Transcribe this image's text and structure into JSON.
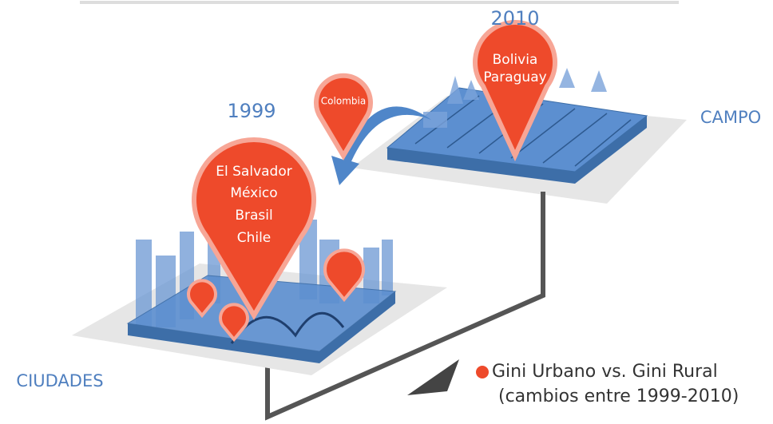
{
  "labels": {
    "year_start": "1999",
    "year_end": "2010",
    "rural": "CAMPO",
    "urban": "CIUDADES"
  },
  "pins": {
    "urban_main": [
      "El Salvador",
      "México",
      "Brasil",
      "Chile"
    ],
    "rural_main": [
      "Bolivia",
      "Paraguay"
    ],
    "moving": "Colombia"
  },
  "legend": {
    "title": "Gini Urbano vs. Gini Rural",
    "subtitle": "(cambios entre 1999-2010)"
  }
}
